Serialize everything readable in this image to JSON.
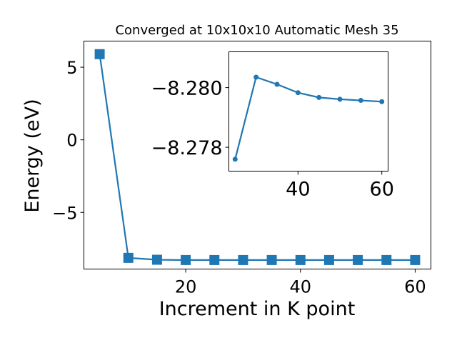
{
  "chart_data": [
    {
      "type": "line",
      "title": "Converged at 10x10x10 Automatic Mesh 35",
      "xlabel": "Increment in K point",
      "ylabel": "Energy (eV)",
      "xlim": [
        2.25,
        62.75
      ],
      "ylim": [
        -8.9,
        6.8
      ],
      "x_ticks": [
        "20",
        "40",
        "60"
      ],
      "y_ticks": [
        "5",
        "0",
        "−5"
      ],
      "grid": false,
      "color": "#1f77b4",
      "marker": "square",
      "series": [
        {
          "x": [
            5,
            10,
            15,
            20,
            25,
            30,
            35,
            40,
            45,
            50,
            55,
            60
          ],
          "values": [
            5.9,
            -8.13,
            -8.26,
            -8.28,
            -8.28,
            -8.28,
            -8.28,
            -8.28,
            -8.28,
            -8.28,
            -8.28,
            -8.28
          ]
        }
      ]
    },
    {
      "type": "line",
      "title": "",
      "xlabel": "",
      "ylabel": "",
      "xlim": [
        23.5,
        61.5
      ],
      "ylim": [
        -8.2772,
        -8.2812
      ],
      "x_ticks": [
        "40",
        "60"
      ],
      "y_ticks": [
        "−8.280",
        "−8.278"
      ],
      "grid": false,
      "color": "#1f77b4",
      "marker": "circle",
      "series": [
        {
          "x": [
            25,
            30,
            35,
            40,
            45,
            50,
            55,
            60
          ],
          "values": [
            -8.2776,
            -8.28035,
            -8.28011,
            -8.27983,
            -8.27967,
            -8.27961,
            -8.27957,
            -8.27953
          ]
        }
      ]
    }
  ]
}
